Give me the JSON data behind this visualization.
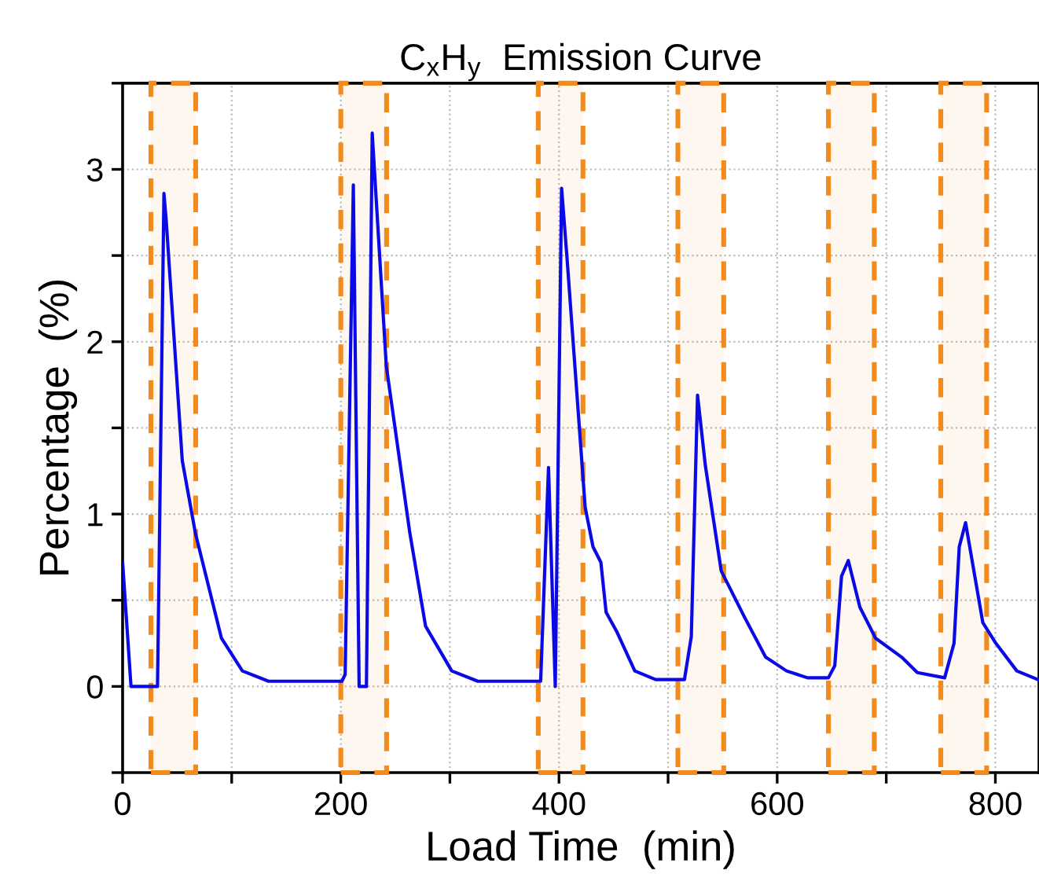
{
  "chart_data": {
    "type": "line",
    "title": "C$_{x}$H$_{y}$  Emission Curve",
    "xlabel": "Load Time  (min)",
    "ylabel": "Percentage  (%)",
    "series": [
      {
        "color": "#0a0ae6",
        "x": [
          0,
          7.7,
          32,
          37.9,
          39.9,
          54.7,
          66.7,
          90.6,
          109.8,
          133.8,
          201,
          204,
          211.5,
          216.8,
          223.5,
          228.8,
          241.7,
          263.3,
          277.7,
          301.7,
          325.6,
          383.2,
          390.4,
          396.6,
          402.4,
          407.2,
          424,
          431.2,
          438.4,
          443.2,
          452.8,
          469.5,
          488.6,
          515,
          521.3,
          527,
          534.2,
          548.7,
          555.9,
          570.2,
          589.4,
          608.6,
          627.8,
          647,
          652.8,
          659,
          665.2,
          675.8,
          690.2,
          714.1,
          728.5,
          753.5,
          762.1,
          766.9,
          772.7,
          788.5,
          800.5,
          819.7,
          838.9
        ],
        "values": [
          0.72,
          0,
          0,
          2.86,
          2.71,
          1.31,
          0.89,
          0.28,
          0.09,
          0.03,
          0.03,
          0.07,
          2.91,
          0,
          0,
          3.21,
          1.86,
          0.89,
          0.35,
          0.09,
          0.03,
          0.03,
          1.27,
          0,
          2.89,
          2.5,
          1.04,
          0.81,
          0.72,
          0.43,
          0.32,
          0.09,
          0.04,
          0.04,
          0.29,
          1.69,
          1.28,
          0.67,
          0.58,
          0.4,
          0.17,
          0.09,
          0.05,
          0.05,
          0.12,
          0.64,
          0.73,
          0.46,
          0.28,
          0.17,
          0.08,
          0.05,
          0.25,
          0.81,
          0.95,
          0.37,
          0.25,
          0.09,
          0.04
        ]
      }
    ],
    "xlim": [
      0,
      840
    ],
    "xticks": [
      0,
      {
        "value": 100,
        "label": null
      },
      200,
      {
        "value": 300,
        "label": null
      },
      400,
      {
        "value": 500,
        "label": null
      },
      600,
      {
        "value": 700,
        "label": null
      },
      800
    ],
    "ylim": [
      -0.5,
      3.5
    ],
    "yticks": [
      {
        "value": -0.5,
        "label": null
      },
      0,
      {
        "value": 0.5,
        "label": null
      },
      1,
      {
        "value": 1.5,
        "label": null
      },
      2,
      {
        "value": 2.5,
        "label": null
      },
      3,
      {
        "value": 3.5,
        "label": null
      }
    ],
    "grid": true,
    "line_style": "solid",
    "marker": "none",
    "bands": [
      {
        "axis": "x",
        "from": 26,
        "to": 67,
        "color": "#f28b1d"
      },
      {
        "axis": "x",
        "from": 200,
        "to": 242,
        "color": "#f28b1d"
      },
      {
        "axis": "x",
        "from": 381,
        "to": 422,
        "color": "#f28b1d"
      },
      {
        "axis": "x",
        "from": 509,
        "to": 551,
        "color": "#f28b1d"
      },
      {
        "axis": "x",
        "from": 647,
        "to": 689,
        "color": "#f28b1d"
      },
      {
        "axis": "x",
        "from": 750,
        "to": 792,
        "color": "#f28b1d"
      }
    ]
  }
}
